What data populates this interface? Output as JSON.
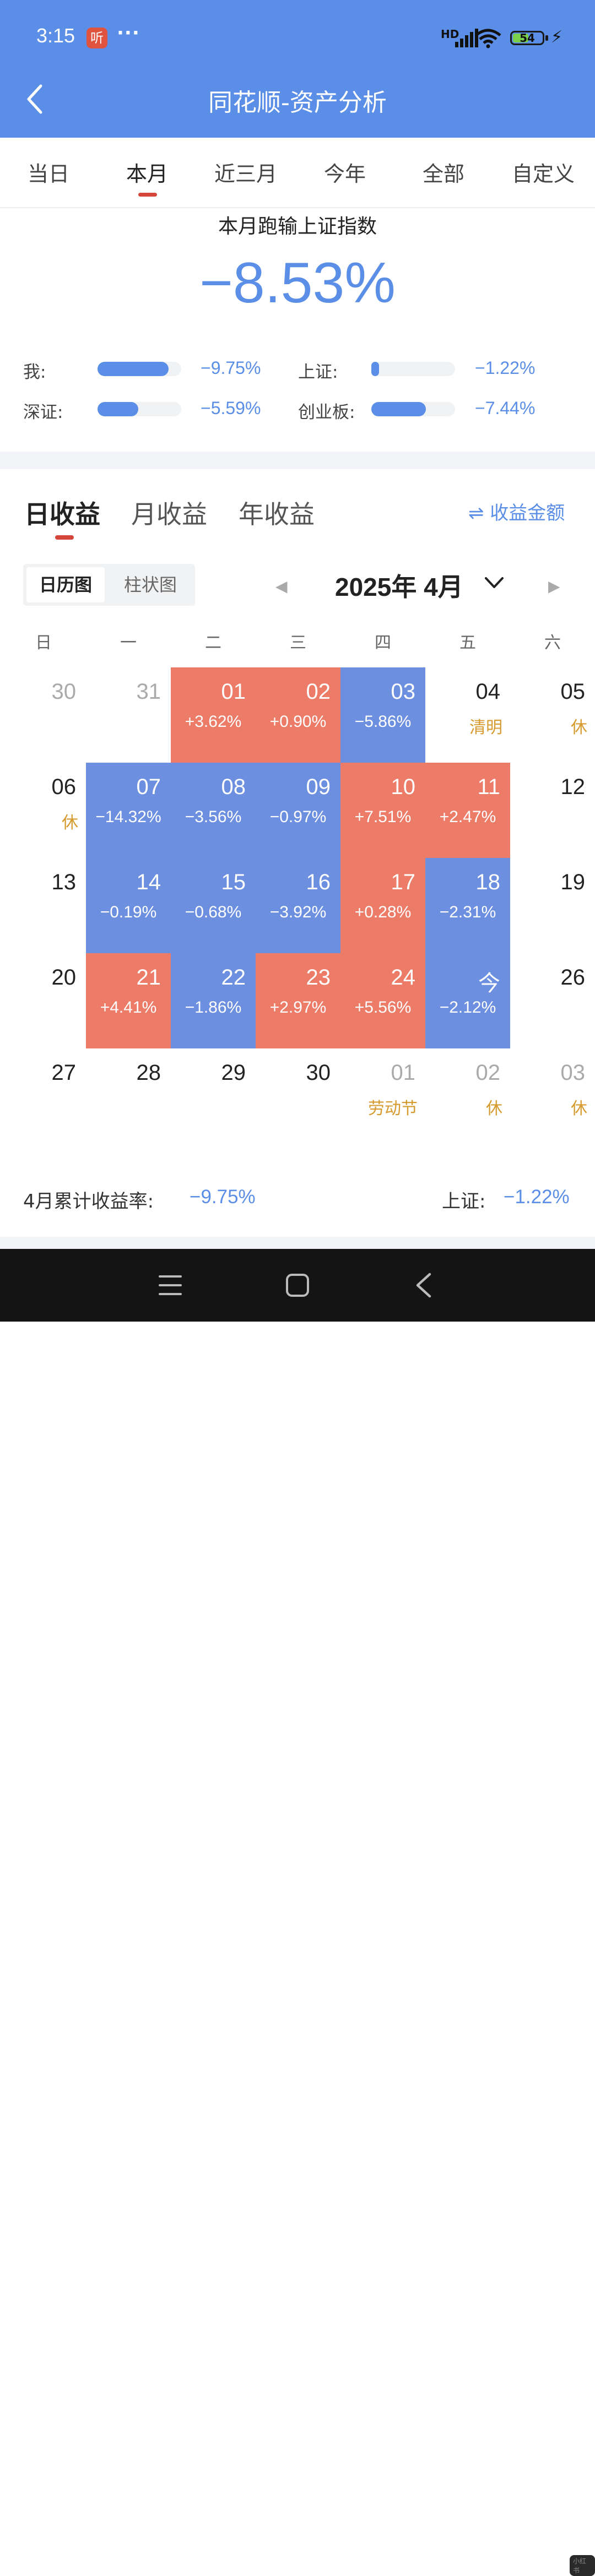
{
  "status_bar": {
    "time": "3:15",
    "app_icon_text": "听",
    "dots": "···",
    "signal_label": "HD",
    "battery_level": "54",
    "battery_fraction": 0.54
  },
  "header": {
    "title": "同花顺-资产分析",
    "back_icon": "back-arrow-icon"
  },
  "period_tabs": {
    "items": [
      "当日",
      "本月",
      "近三月",
      "今年",
      "全部",
      "自定义"
    ],
    "selected": "本月"
  },
  "summary": {
    "heading": "本月跑输上证指数",
    "value": "−8.53%",
    "comparisons": [
      {
        "label": "我:",
        "value": "−9.75%",
        "fill_fraction": 0.85
      },
      {
        "label": "上证:",
        "value": "−1.22%",
        "fill_fraction": 0.08
      },
      {
        "label": "深证:",
        "value": "−5.59%",
        "fill_fraction": 0.49
      },
      {
        "label": "创业板:",
        "value": "−7.44%",
        "fill_fraction": 0.65
      }
    ]
  },
  "returns_tabs": {
    "items": [
      "日收益",
      "月收益",
      "年收益"
    ],
    "selected": "日收益",
    "amount_toggle": "⇌ 收益金额"
  },
  "view_switch": {
    "calendar": "日历图",
    "bar": "柱状图",
    "selected": "日历图"
  },
  "month_nav": {
    "label": "2025年 4月"
  },
  "weekdays": [
    "日",
    "一",
    "二",
    "三",
    "四",
    "五",
    "六"
  ],
  "calendar": {
    "rows": [
      [
        {
          "day": "30",
          "muted": true
        },
        {
          "day": "31",
          "muted": true
        },
        {
          "day": "01",
          "pct": "+3.62%",
          "type": "gain"
        },
        {
          "day": "02",
          "pct": "+0.90%",
          "type": "gain"
        },
        {
          "day": "03",
          "pct": "−5.86%",
          "type": "loss"
        },
        {
          "day": "04",
          "note": "清明"
        },
        {
          "day": "05",
          "note": "休"
        }
      ],
      [
        {
          "day": "06",
          "note": "休"
        },
        {
          "day": "07",
          "pct": "−14.32%",
          "type": "loss"
        },
        {
          "day": "08",
          "pct": "−3.56%",
          "type": "loss"
        },
        {
          "day": "09",
          "pct": "−0.97%",
          "type": "loss"
        },
        {
          "day": "10",
          "pct": "+7.51%",
          "type": "gain"
        },
        {
          "day": "11",
          "pct": "+2.47%",
          "type": "gain"
        },
        {
          "day": "12"
        }
      ],
      [
        {
          "day": "13"
        },
        {
          "day": "14",
          "pct": "−0.19%",
          "type": "loss"
        },
        {
          "day": "15",
          "pct": "−0.68%",
          "type": "loss"
        },
        {
          "day": "16",
          "pct": "−3.92%",
          "type": "loss"
        },
        {
          "day": "17",
          "pct": "+0.28%",
          "type": "gain"
        },
        {
          "day": "18",
          "pct": "−2.31%",
          "type": "loss"
        },
        {
          "day": "19"
        }
      ],
      [
        {
          "day": "20"
        },
        {
          "day": "21",
          "pct": "+4.41%",
          "type": "gain"
        },
        {
          "day": "22",
          "pct": "−1.86%",
          "type": "loss"
        },
        {
          "day": "23",
          "pct": "+2.97%",
          "type": "gain"
        },
        {
          "day": "24",
          "pct": "+5.56%",
          "type": "gain"
        },
        {
          "day": "今",
          "pct": "−2.12%",
          "type": "loss"
        },
        {
          "day": "26"
        }
      ],
      [
        {
          "day": "27"
        },
        {
          "day": "28"
        },
        {
          "day": "29"
        },
        {
          "day": "30"
        },
        {
          "day": "01",
          "muted": true,
          "note": "劳动节"
        },
        {
          "day": "02",
          "muted": true,
          "note": "休"
        },
        {
          "day": "03",
          "muted": true,
          "note": "休"
        }
      ]
    ]
  },
  "monthly_summary": {
    "cum_label": "4月累计收益率:",
    "cum_value": "−9.75%",
    "index_label": "上证:",
    "index_value": "−1.22%"
  },
  "colors": {
    "accent": "#5b8ee6",
    "gain": "#ec7b67",
    "loss": "#6c8fe0",
    "holiday": "#d69a2e",
    "indicator": "#d6453a"
  },
  "watermark": "小红书"
}
